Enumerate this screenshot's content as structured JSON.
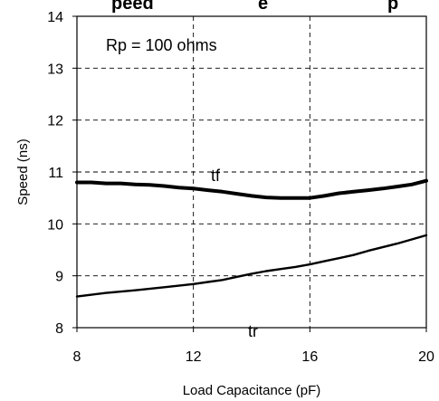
{
  "chart_data": {
    "type": "line",
    "title": "",
    "title_fragments": [
      "peed",
      "e",
      "p"
    ],
    "xlabel": "Load Capacitance (pF)",
    "ylabel": "Speed (ns)",
    "xlim": [
      8,
      20
    ],
    "ylim": [
      8,
      14
    ],
    "x_ticks": [
      8,
      12,
      16,
      20
    ],
    "y_ticks": [
      8,
      9,
      10,
      11,
      12,
      13,
      14
    ],
    "x_tick_labels": [
      "8",
      "12",
      "16",
      "20"
    ],
    "y_tick_labels": [
      "8",
      "9",
      "10",
      "11",
      "12",
      "13",
      "14"
    ],
    "grid": "dashed, at interior ticks",
    "annotation": "Rp = 100 ohms",
    "series": [
      {
        "name": "tf",
        "line_width": "thick",
        "color": "#000000",
        "x": [
          8,
          8.5,
          9,
          9.5,
          10,
          10.5,
          11,
          11.5,
          12,
          12.5,
          13,
          13.5,
          14,
          14.5,
          15,
          15.5,
          16,
          16.5,
          17,
          17.5,
          18,
          18.5,
          19,
          19.5,
          20
        ],
        "values": [
          10.8,
          10.8,
          10.78,
          10.78,
          10.76,
          10.75,
          10.73,
          10.7,
          10.68,
          10.65,
          10.62,
          10.58,
          10.54,
          10.51,
          10.5,
          10.5,
          10.5,
          10.54,
          10.59,
          10.62,
          10.65,
          10.68,
          10.72,
          10.76,
          10.83
        ]
      },
      {
        "name": "tr",
        "line_width": "thin",
        "color": "#000000",
        "x": [
          8,
          9,
          10,
          11,
          12,
          12.5,
          13,
          13.5,
          14,
          14.5,
          15,
          15.5,
          16,
          16.5,
          17,
          17.5,
          18,
          19,
          20
        ],
        "values": [
          8.6,
          8.67,
          8.72,
          8.78,
          8.84,
          8.88,
          8.92,
          8.98,
          9.04,
          9.09,
          9.13,
          9.17,
          9.22,
          9.28,
          9.34,
          9.4,
          9.48,
          9.62,
          9.78
        ]
      }
    ]
  }
}
